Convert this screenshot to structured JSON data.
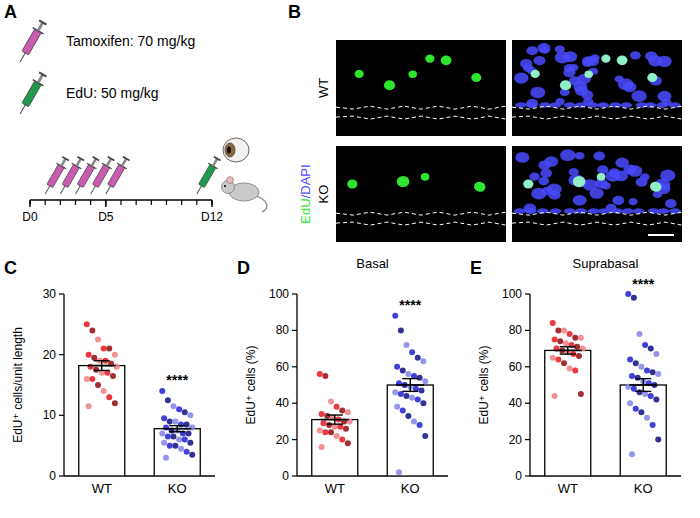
{
  "chart_data": [
    {
      "type": "bar",
      "panel_label": "C",
      "y_label": "EdU⁺ cells/unit length",
      "categories": [
        "WT",
        "KO"
      ],
      "values": [
        18.2,
        7.8
      ],
      "errors": [
        0.8,
        0.5
      ],
      "points": [
        [
          25,
          24,
          22.5,
          21,
          21,
          20,
          20,
          19.5,
          19,
          19,
          18.5,
          18,
          18,
          17.5,
          17,
          17,
          16.5,
          16,
          16,
          15,
          14,
          13,
          12,
          11.5
        ],
        [
          14,
          12.5,
          11.5,
          11,
          10.5,
          10,
          9.5,
          9,
          9,
          8.5,
          8.5,
          8,
          8,
          7.5,
          7.5,
          7,
          7,
          7,
          6.5,
          6.5,
          6,
          6,
          5.5,
          5.5,
          5,
          5,
          4.5,
          4,
          3.5,
          3
        ]
      ],
      "colors": [
        "#e8232b",
        "#2b2bd6"
      ],
      "ylim": [
        0,
        30
      ],
      "yticks": [
        0,
        10,
        20,
        30
      ],
      "annotations": [
        "****"
      ]
    },
    {
      "type": "bar",
      "panel_label": "D",
      "title": "Basal",
      "y_label": "EdU⁺ cells (%)",
      "categories": [
        "WT",
        "KO"
      ],
      "values": [
        31,
        50
      ],
      "errors": [
        2.5,
        3.5
      ],
      "points": [
        [
          56,
          55,
          41,
          38,
          36,
          35,
          34,
          33,
          32,
          31,
          30,
          30,
          29,
          28,
          27,
          27,
          26,
          25,
          24,
          24,
          22,
          20,
          18,
          16
        ],
        [
          88,
          80,
          72,
          68,
          65,
          63,
          60,
          58,
          56,
          55,
          54,
          52,
          51,
          50,
          49,
          48,
          47,
          46,
          45,
          44,
          43,
          42,
          40,
          38,
          36,
          33,
          30,
          28,
          22,
          2
        ]
      ],
      "colors": [
        "#e8232b",
        "#2b2bd6"
      ],
      "ylim": [
        0,
        100
      ],
      "yticks": [
        0,
        20,
        40,
        60,
        80,
        100
      ],
      "annotations": [
        "****"
      ]
    },
    {
      "type": "bar",
      "panel_label": "E",
      "title": "Suprabasal",
      "y_label": "EdU⁺ cells (%)",
      "categories": [
        "WT",
        "KO"
      ],
      "values": [
        69,
        50
      ],
      "errors": [
        2,
        3.5
      ],
      "points": [
        [
          84,
          80,
          80,
          78,
          76,
          76,
          75,
          74,
          73,
          72,
          71,
          70,
          70,
          69,
          68,
          67,
          66,
          65,
          64,
          62,
          59,
          58,
          45,
          44
        ],
        [
          100,
          98,
          78,
          72,
          70,
          67,
          64,
          62,
          60,
          58,
          57,
          56,
          55,
          54,
          52,
          51,
          50,
          49,
          48,
          46,
          45,
          44,
          42,
          40,
          37,
          35,
          32,
          28,
          20,
          12
        ]
      ],
      "colors": [
        "#e8232b",
        "#2b2bd6"
      ],
      "ylim": [
        0,
        100
      ],
      "yticks": [
        0,
        20,
        40,
        60,
        80,
        100
      ],
      "annotations": [
        "****"
      ]
    }
  ],
  "schematic": {
    "panel_label": "A",
    "agents": [
      {
        "label": "Tamoxifen: 70 mg/kg",
        "color": "#c95bb0",
        "days": [
          1,
          2,
          3,
          4,
          5
        ]
      },
      {
        "label": "EdU: 50 mg/kg",
        "color": "#1f9a4a",
        "days": [
          11
        ]
      }
    ],
    "timeline": {
      "range": [
        0,
        12
      ],
      "ticks": [
        {
          "value": 0,
          "label": "D0"
        },
        {
          "value": 5,
          "label": "D5"
        },
        {
          "value": 12,
          "label": "D12"
        }
      ]
    }
  },
  "images": {
    "panel_label": "B",
    "rows": [
      "WT",
      "KO"
    ],
    "stain": [
      "EdU",
      "/DAPI"
    ],
    "stain_colors": [
      "#2ee62e",
      "#4a4aff"
    ]
  }
}
